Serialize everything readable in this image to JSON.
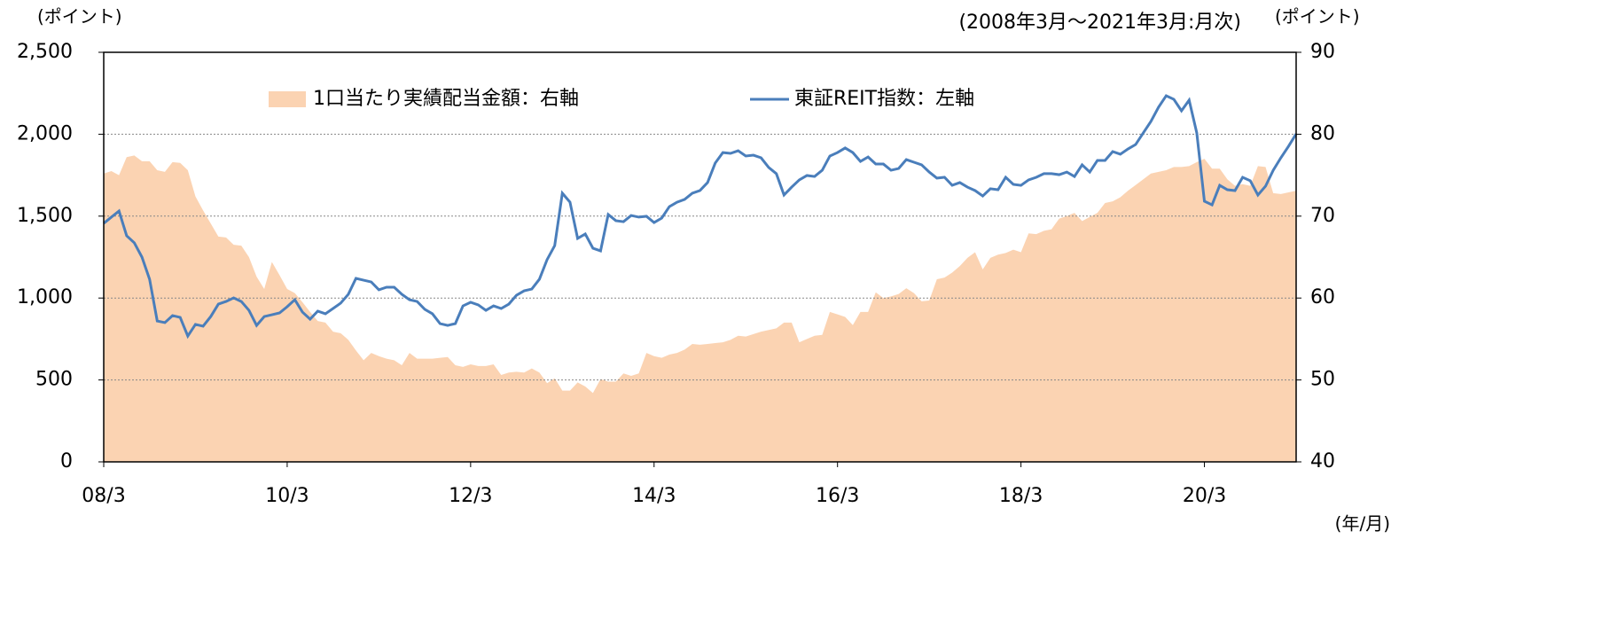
{
  "chart_data": {
    "type": "line",
    "title": "(2008年3月～2021年3月:月次)",
    "y_label": "(ポイント)",
    "y2_label": "(ポイント)",
    "x_label": "(年/月)",
    "grid": true,
    "categories": [
      "08/3",
      null,
      null,
      null,
      null,
      null,
      null,
      null,
      null,
      null,
      null,
      null,
      null,
      null,
      null,
      null,
      null,
      null,
      null,
      null,
      null,
      null,
      null,
      null,
      "10/3",
      null,
      null,
      null,
      null,
      null,
      null,
      null,
      null,
      null,
      null,
      null,
      null,
      null,
      null,
      null,
      null,
      null,
      null,
      null,
      null,
      null,
      null,
      null,
      "12/3",
      null,
      null,
      null,
      null,
      null,
      null,
      null,
      null,
      null,
      null,
      null,
      null,
      null,
      null,
      null,
      null,
      null,
      null,
      null,
      null,
      null,
      null,
      null,
      "14/3",
      null,
      null,
      null,
      null,
      null,
      null,
      null,
      null,
      null,
      null,
      null,
      null,
      null,
      null,
      null,
      null,
      null,
      null,
      null,
      null,
      null,
      null,
      null,
      "16/3",
      null,
      null,
      null,
      null,
      null,
      null,
      null,
      null,
      null,
      null,
      null,
      null,
      null,
      null,
      null,
      null,
      null,
      null,
      null,
      null,
      null,
      null,
      null,
      "18/3",
      null,
      null,
      null,
      null,
      null,
      null,
      null,
      null,
      null,
      null,
      null,
      null,
      null,
      null,
      null,
      null,
      null,
      null,
      null,
      null,
      null,
      null,
      null,
      "20/3",
      null,
      null,
      null,
      null,
      null,
      null,
      null,
      null,
      null,
      null,
      null,
      null
    ],
    "ylim": [
      0,
      2500
    ],
    "yticks": [
      0,
      500,
      {
        "value": 1000,
        "label": "1,000"
      },
      {
        "value": 1500,
        "label": "1,500"
      },
      {
        "value": 2000,
        "label": "2,000"
      },
      {
        "value": 2500,
        "label": "2,500"
      }
    ],
    "y2lim": [
      40,
      90
    ],
    "y2ticks": [
      40,
      50,
      60,
      70,
      80,
      90
    ],
    "series": [
      {
        "name": "1口当たり実績配当金額：右軸",
        "type": "area",
        "axis": "y2",
        "color": "#fbd3b2",
        "values": [
          75.2,
          75.5,
          75.0,
          77.2,
          77.4,
          76.7,
          76.7,
          75.6,
          75.4,
          76.6,
          76.5,
          75.6,
          72.4,
          70.7,
          69.1,
          67.5,
          67.4,
          66.5,
          66.4,
          65.0,
          62.6,
          61.1,
          64.4,
          62.8,
          61.1,
          60.6,
          59.5,
          58.3,
          57.2,
          57.0,
          55.9,
          55.7,
          54.9,
          53.6,
          52.4,
          53.3,
          52.9,
          52.6,
          52.4,
          51.8,
          53.3,
          52.6,
          52.6,
          52.6,
          52.7,
          52.8,
          51.8,
          51.6,
          51.9,
          51.7,
          51.7,
          51.9,
          50.6,
          50.9,
          51.0,
          50.9,
          51.4,
          50.9,
          49.6,
          50.2,
          48.7,
          48.7,
          49.7,
          49.2,
          48.4,
          50.1,
          49.8,
          49.8,
          50.8,
          50.5,
          50.8,
          53.3,
          52.9,
          52.7,
          53.1,
          53.3,
          53.7,
          54.4,
          54.3,
          54.4,
          54.5,
          54.6,
          54.9,
          55.4,
          55.3,
          55.6,
          55.9,
          56.1,
          56.3,
          57.0,
          57.0,
          54.6,
          55.0,
          55.4,
          55.5,
          58.3,
          58.0,
          57.7,
          56.7,
          58.3,
          58.3,
          60.7,
          60.0,
          60.2,
          60.5,
          61.2,
          60.6,
          59.6,
          59.7,
          62.3,
          62.5,
          63.1,
          63.9,
          64.9,
          65.6,
          63.5,
          64.9,
          65.3,
          65.5,
          65.9,
          65.6,
          67.9,
          67.8,
          68.2,
          68.4,
          69.7,
          70.0,
          70.4,
          69.4,
          69.9,
          70.4,
          71.6,
          71.8,
          72.3,
          73.1,
          73.8,
          74.5,
          75.2,
          75.4,
          75.6,
          76.0,
          76.0,
          76.1,
          76.6,
          77.0,
          75.8,
          75.8,
          74.5,
          73.7,
          73.9,
          73.7,
          76.1,
          76.0,
          72.8,
          72.7,
          72.9,
          73.1
        ]
      },
      {
        "name": "東証REIT指数：左軸",
        "type": "line",
        "color": "#4a7ebb",
        "values": [
          1456,
          1494,
          1531,
          1380,
          1337,
          1250,
          1115,
          860,
          850,
          893,
          882,
          768,
          839,
          828,
          887,
          963,
          979,
          1001,
          979,
          925,
          833,
          887,
          898,
          909,
          947,
          990,
          914,
          871,
          920,
          904,
          936,
          969,
          1023,
          1120,
          1109,
          1098,
          1050,
          1066,
          1066,
          1023,
          990,
          979,
          931,
          904,
          844,
          833,
          844,
          952,
          974,
          958,
          925,
          952,
          936,
          963,
          1017,
          1044,
          1055,
          1115,
          1234,
          1320,
          1640,
          1585,
          1364,
          1391,
          1304,
          1288,
          1510,
          1472,
          1466,
          1504,
          1494,
          1499,
          1461,
          1488,
          1558,
          1585,
          1602,
          1640,
          1656,
          1705,
          1824,
          1888,
          1883,
          1899,
          1867,
          1872,
          1856,
          1797,
          1759,
          1629,
          1677,
          1721,
          1748,
          1742,
          1780,
          1867,
          1888,
          1916,
          1888,
          1834,
          1861,
          1818,
          1818,
          1780,
          1791,
          1845,
          1829,
          1813,
          1769,
          1732,
          1737,
          1688,
          1705,
          1677,
          1656,
          1623,
          1667,
          1661,
          1737,
          1694,
          1688,
          1721,
          1737,
          1759,
          1759,
          1753,
          1769,
          1742,
          1813,
          1769,
          1840,
          1840,
          1894,
          1878,
          1910,
          1937,
          2008,
          2078,
          2165,
          2235,
          2213,
          2143,
          2208,
          2008,
          1591,
          1569,
          1688,
          1661,
          1656,
          1737,
          1716,
          1629,
          1683,
          1780,
          1856,
          1926,
          2002
        ]
      }
    ]
  }
}
